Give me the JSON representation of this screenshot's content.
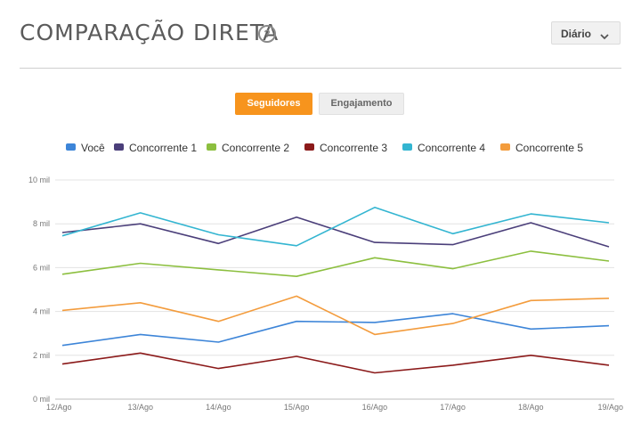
{
  "header": {
    "title": "COMPARAÇÃO DIRETA",
    "help_icon": "question-circle-icon",
    "period": {
      "selected": "Diário",
      "icon": "chevron-down-icon"
    }
  },
  "tabs": [
    {
      "label": "Seguidores",
      "active": true
    },
    {
      "label": "Engajamento",
      "active": false
    }
  ],
  "chart_data": {
    "type": "line",
    "title": "",
    "xlabel": "",
    "ylabel": "",
    "categories": [
      "12/Ago",
      "13/Ago",
      "14/Ago",
      "15/Ago",
      "16/Ago",
      "17/Ago",
      "18/Ago",
      "19/Ago"
    ],
    "y_ticks": [
      "0 mil",
      "2 mil",
      "4 mil",
      "6 mil",
      "8 mil",
      "10 mil"
    ],
    "ylim": [
      0,
      10
    ],
    "grid": true,
    "legend_position": "top",
    "series": [
      {
        "name": "Você",
        "color": "#3d85d8",
        "values": [
          2.45,
          2.95,
          2.6,
          3.55,
          3.5,
          3.9,
          3.2,
          3.35
        ]
      },
      {
        "name": "Concorrente 1",
        "color": "#4b3f7a",
        "values": [
          7.6,
          8.0,
          7.1,
          8.3,
          7.15,
          7.05,
          8.05,
          6.95
        ]
      },
      {
        "name": "Concorrente 2",
        "color": "#8cbf3f",
        "values": [
          5.7,
          6.2,
          5.9,
          5.6,
          6.45,
          5.95,
          6.75,
          6.3
        ]
      },
      {
        "name": "Concorrente 3",
        "color": "#8b1a1a",
        "values": [
          1.6,
          2.1,
          1.4,
          1.95,
          1.2,
          1.55,
          2.0,
          1.55
        ]
      },
      {
        "name": "Concorrente 4",
        "color": "#33b5d1",
        "values": [
          7.45,
          8.5,
          7.5,
          7.0,
          8.75,
          7.55,
          8.45,
          8.05
        ]
      },
      {
        "name": "Concorrente 5",
        "color": "#f39c3d",
        "values": [
          4.05,
          4.4,
          3.55,
          4.7,
          2.95,
          3.45,
          4.5,
          4.6
        ]
      }
    ]
  }
}
